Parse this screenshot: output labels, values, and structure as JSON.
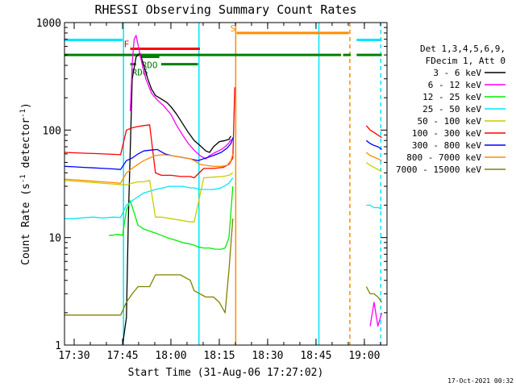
{
  "chart_data": {
    "type": "line",
    "title": "RHESSI Observing Summary Count Rates",
    "xlabel": "Start Time (31-Aug-06 17:27:02)",
    "ylabel_main": "Count Rate (s",
    "ylabel_sup1": "-1",
    "ylabel_mid": " detector",
    "ylabel_sup2": "-1",
    "ylabel_end": ")",
    "yscale": "log",
    "xlim": [
      17.45,
      19.117
    ],
    "ylim": [
      1,
      1000
    ],
    "x_ticks": [
      {
        "v": 17.5,
        "label": "17:30"
      },
      {
        "v": 17.75,
        "label": "17:45"
      },
      {
        "v": 18.0,
        "label": "18:00"
      },
      {
        "v": 18.25,
        "label": "18:15"
      },
      {
        "v": 18.5,
        "label": "18:30"
      },
      {
        "v": 18.75,
        "label": "18:45"
      },
      {
        "v": 19.0,
        "label": "19:00"
      }
    ],
    "y_ticks": [
      {
        "v": 1,
        "label": "1"
      },
      {
        "v": 10,
        "label": "10"
      },
      {
        "v": 100,
        "label": "100"
      },
      {
        "v": 1000,
        "label": "1000"
      }
    ],
    "legend_header": [
      "Det 1,3,4,5,6,9,",
      "FDecim 1, Att 0"
    ],
    "series": [
      {
        "name": "3 - 6 keV",
        "color": "#000000",
        "points": [
          [
            17.75,
            1.0
          ],
          [
            17.77,
            1.8
          ],
          [
            17.78,
            15
          ],
          [
            17.8,
            300
          ],
          [
            17.82,
            480
          ],
          [
            17.84,
            520
          ],
          [
            17.86,
            400
          ],
          [
            17.88,
            300
          ],
          [
            17.9,
            240
          ],
          [
            17.92,
            210
          ],
          [
            17.95,
            195
          ],
          [
            17.98,
            180
          ],
          [
            18.0,
            165
          ],
          [
            18.03,
            140
          ],
          [
            18.06,
            115
          ],
          [
            18.09,
            95
          ],
          [
            18.12,
            80
          ],
          [
            18.15,
            72
          ],
          [
            18.18,
            64
          ],
          [
            18.2,
            62
          ],
          [
            18.22,
            70
          ],
          [
            18.25,
            78
          ],
          [
            18.28,
            80
          ],
          [
            18.3,
            82
          ],
          [
            18.31,
            88
          ]
        ]
      },
      {
        "name": "6 - 12 keV",
        "color": "#ff00ff",
        "points": [
          [
            17.79,
            150
          ],
          [
            17.8,
            420
          ],
          [
            17.81,
            700
          ],
          [
            17.82,
            760
          ],
          [
            17.83,
            620
          ],
          [
            17.85,
            420
          ],
          [
            17.87,
            300
          ],
          [
            17.9,
            220
          ],
          [
            17.93,
            190
          ],
          [
            17.96,
            170
          ],
          [
            18.0,
            140
          ],
          [
            18.03,
            110
          ],
          [
            18.06,
            90
          ],
          [
            18.09,
            75
          ],
          [
            18.12,
            65
          ],
          [
            18.15,
            58
          ],
          [
            18.18,
            54
          ],
          [
            18.2,
            58
          ],
          [
            18.23,
            62
          ],
          [
            18.26,
            66
          ],
          [
            18.28,
            70
          ],
          [
            18.3,
            76
          ],
          [
            18.31,
            82
          ],
          [
            19.03,
            1.5
          ],
          [
            19.05,
            2.5
          ],
          [
            19.07,
            1.5
          ],
          [
            19.09,
            2.0
          ]
        ]
      },
      {
        "name": "12 - 25 keV",
        "color": "#00ee00",
        "points": [
          [
            17.68,
            10.5
          ],
          [
            17.7,
            10.5
          ],
          [
            17.72,
            10.7
          ],
          [
            17.75,
            10.5
          ],
          [
            17.77,
            18
          ],
          [
            17.79,
            22
          ],
          [
            17.81,
            17
          ],
          [
            17.83,
            13
          ],
          [
            17.86,
            12
          ],
          [
            17.89,
            11.5
          ],
          [
            17.92,
            11
          ],
          [
            17.95,
            10.5
          ],
          [
            17.98,
            10
          ],
          [
            18.02,
            9.5
          ],
          [
            18.06,
            9
          ],
          [
            18.1,
            8.7
          ],
          [
            18.12,
            8.5
          ],
          [
            18.14,
            8.2
          ],
          [
            18.17,
            8
          ],
          [
            18.2,
            8
          ],
          [
            18.23,
            7.8
          ],
          [
            18.26,
            7.8
          ],
          [
            18.28,
            8
          ],
          [
            18.3,
            10
          ],
          [
            18.32,
            30
          ]
        ]
      },
      {
        "name": "25 - 50 keV",
        "color": "#00e5ff",
        "points": [
          [
            17.45,
            15
          ],
          [
            17.5,
            15
          ],
          [
            17.55,
            15.3
          ],
          [
            17.6,
            15.5
          ],
          [
            17.65,
            15.2
          ],
          [
            17.7,
            15.5
          ],
          [
            17.74,
            15.4
          ],
          [
            17.77,
            20
          ],
          [
            17.8,
            22
          ],
          [
            17.83,
            24
          ],
          [
            17.86,
            26
          ],
          [
            17.89,
            27
          ],
          [
            17.92,
            28
          ],
          [
            17.96,
            29
          ],
          [
            17.99,
            30
          ],
          [
            18.03,
            30
          ],
          [
            18.06,
            30
          ],
          [
            18.1,
            29
          ],
          [
            18.12,
            29
          ],
          [
            18.15,
            28
          ],
          [
            18.18,
            28
          ],
          [
            18.22,
            28
          ],
          [
            18.26,
            29
          ],
          [
            18.3,
            32
          ],
          [
            18.32,
            36
          ],
          [
            19.01,
            20
          ],
          [
            19.03,
            20
          ],
          [
            19.05,
            19
          ],
          [
            19.07,
            19
          ],
          [
            19.09,
            18.5
          ]
        ]
      },
      {
        "name": "50 - 100 keV",
        "color": "#cccc00",
        "points": [
          [
            17.45,
            34
          ],
          [
            17.5,
            33.5
          ],
          [
            17.55,
            33
          ],
          [
            17.6,
            32.5
          ],
          [
            17.65,
            32
          ],
          [
            17.7,
            31.5
          ],
          [
            17.74,
            31
          ],
          [
            17.77,
            31
          ],
          [
            17.8,
            32
          ],
          [
            17.83,
            33
          ],
          [
            17.86,
            33
          ],
          [
            17.89,
            34
          ],
          [
            17.92,
            15.5
          ],
          [
            17.95,
            15.5
          ],
          [
            18.0,
            15
          ],
          [
            18.05,
            14.5
          ],
          [
            18.1,
            14
          ],
          [
            18.12,
            14
          ],
          [
            18.17,
            36
          ],
          [
            18.22,
            36.5
          ],
          [
            18.27,
            37
          ],
          [
            18.3,
            38
          ],
          [
            18.32,
            40
          ],
          [
            19.01,
            50
          ],
          [
            19.03,
            47
          ],
          [
            19.05,
            45
          ],
          [
            19.07,
            43
          ],
          [
            19.09,
            41
          ]
        ]
      },
      {
        "name": "100 - 300 keV",
        "color": "#ff0000",
        "points": [
          [
            17.45,
            62
          ],
          [
            17.5,
            61.5
          ],
          [
            17.55,
            61
          ],
          [
            17.6,
            60.5
          ],
          [
            17.65,
            60
          ],
          [
            17.7,
            59.5
          ],
          [
            17.74,
            59
          ],
          [
            17.77,
            100
          ],
          [
            17.8,
            105
          ],
          [
            17.83,
            108
          ],
          [
            17.86,
            110
          ],
          [
            17.89,
            112
          ],
          [
            17.92,
            40
          ],
          [
            17.95,
            38
          ],
          [
            18.0,
            38
          ],
          [
            18.05,
            37
          ],
          [
            18.1,
            37
          ],
          [
            18.12,
            36
          ],
          [
            18.17,
            44
          ],
          [
            18.22,
            44
          ],
          [
            18.27,
            45
          ],
          [
            18.3,
            48
          ],
          [
            18.32,
            55
          ],
          [
            18.33,
            250
          ],
          [
            19.01,
            110
          ],
          [
            19.03,
            100
          ],
          [
            19.05,
            95
          ],
          [
            19.07,
            90
          ],
          [
            19.09,
            85
          ]
        ]
      },
      {
        "name": "300 - 800 keV",
        "color": "#0000ff",
        "points": [
          [
            17.45,
            46
          ],
          [
            17.5,
            45.5
          ],
          [
            17.55,
            45
          ],
          [
            17.6,
            44.5
          ],
          [
            17.65,
            44
          ],
          [
            17.7,
            43.5
          ],
          [
            17.74,
            43
          ],
          [
            17.77,
            52
          ],
          [
            17.8,
            55
          ],
          [
            17.83,
            60
          ],
          [
            17.86,
            64
          ],
          [
            17.89,
            65
          ],
          [
            17.93,
            66
          ],
          [
            17.97,
            60
          ],
          [
            18.0,
            58
          ],
          [
            18.05,
            56
          ],
          [
            18.1,
            54
          ],
          [
            18.14,
            52
          ],
          [
            18.18,
            55
          ],
          [
            18.22,
            58
          ],
          [
            18.26,
            62
          ],
          [
            18.29,
            68
          ],
          [
            18.31,
            75
          ],
          [
            18.32,
            85
          ],
          [
            19.01,
            80
          ],
          [
            19.03,
            75
          ],
          [
            19.05,
            72
          ],
          [
            19.07,
            70
          ],
          [
            19.09,
            66
          ]
        ]
      },
      {
        "name": "800 - 7000 keV",
        "color": "#ff8c00",
        "points": [
          [
            17.45,
            35
          ],
          [
            17.5,
            34.5
          ],
          [
            17.55,
            34
          ],
          [
            17.6,
            33.5
          ],
          [
            17.65,
            33
          ],
          [
            17.7,
            32.5
          ],
          [
            17.74,
            32
          ],
          [
            17.77,
            40
          ],
          [
            17.8,
            44
          ],
          [
            17.83,
            48
          ],
          [
            17.86,
            52
          ],
          [
            17.89,
            55
          ],
          [
            17.92,
            58
          ],
          [
            17.96,
            59
          ],
          [
            18.0,
            58
          ],
          [
            18.05,
            56
          ],
          [
            18.1,
            54
          ],
          [
            18.12,
            52
          ],
          [
            18.15,
            48
          ],
          [
            18.18,
            47
          ],
          [
            18.22,
            46
          ],
          [
            18.26,
            46
          ],
          [
            18.29,
            47
          ],
          [
            18.31,
            52
          ],
          [
            18.32,
            60
          ],
          [
            19.01,
            62
          ],
          [
            19.03,
            58
          ],
          [
            19.05,
            56
          ],
          [
            19.07,
            54
          ],
          [
            19.09,
            52
          ]
        ]
      },
      {
        "name": "7000 - 15000 keV",
        "color": "#808000",
        "points": [
          [
            17.45,
            1.9
          ],
          [
            17.5,
            1.9
          ],
          [
            17.55,
            1.9
          ],
          [
            17.6,
            1.9
          ],
          [
            17.65,
            1.9
          ],
          [
            17.7,
            1.9
          ],
          [
            17.74,
            1.9
          ],
          [
            17.77,
            2.5
          ],
          [
            17.8,
            3.0
          ],
          [
            17.83,
            3.5
          ],
          [
            17.86,
            3.5
          ],
          [
            17.89,
            3.5
          ],
          [
            17.92,
            4.5
          ],
          [
            17.96,
            4.5
          ],
          [
            18.0,
            4.5
          ],
          [
            18.05,
            4.5
          ],
          [
            18.1,
            4.0
          ],
          [
            18.12,
            3.2
          ],
          [
            18.15,
            3.0
          ],
          [
            18.18,
            2.8
          ],
          [
            18.22,
            2.8
          ],
          [
            18.25,
            2.5
          ],
          [
            18.28,
            2.0
          ],
          [
            18.3,
            5
          ],
          [
            18.32,
            15
          ],
          [
            19.01,
            3.5
          ],
          [
            19.03,
            3.0
          ],
          [
            19.05,
            3.0
          ],
          [
            19.07,
            2.8
          ],
          [
            19.09,
            2.5
          ]
        ]
      }
    ],
    "flag_bars": [
      {
        "label": "",
        "color": "#00e5ff",
        "y": 690,
        "segments": [
          [
            17.45,
            17.75
          ],
          [
            18.96,
            19.09
          ]
        ]
      },
      {
        "label": "F",
        "color": "#ff0000",
        "y": 570,
        "segments": [
          [
            17.79,
            18.15
          ]
        ]
      },
      {
        "label": "S",
        "color": "#ff8c00",
        "y": 800,
        "segments": [
          [
            18.34,
            18.92
          ]
        ]
      },
      {
        "label": "",
        "color": "#008000",
        "y": 500,
        "segments": [
          [
            17.45,
            18.88
          ],
          [
            18.89,
            18.93
          ],
          [
            18.96,
            19.09
          ]
        ]
      },
      {
        "label": "RDO",
        "color": "#008000",
        "y": 480,
        "segments": [
          [
            17.84,
            17.94
          ]
        ]
      },
      {
        "label": "RD6",
        "color": "#008000",
        "y": 410,
        "segments": [
          [
            17.79,
            17.82
          ],
          [
            17.95,
            18.14
          ]
        ]
      }
    ],
    "vlines": [
      {
        "x": 17.755,
        "color": "#00e5ff",
        "style": "solid"
      },
      {
        "x": 18.145,
        "color": "#00e5ff",
        "style": "solid"
      },
      {
        "x": 18.335,
        "color": "#ff8c00",
        "style": "solid"
      },
      {
        "x": 18.765,
        "color": "#00e5ff",
        "style": "solid"
      },
      {
        "x": 18.925,
        "color": "#ff8c00",
        "style": "dashed"
      },
      {
        "x": 19.085,
        "color": "#00e5ff",
        "style": "dashed"
      }
    ],
    "timestamp": "17-Oct-2021 00:32"
  }
}
